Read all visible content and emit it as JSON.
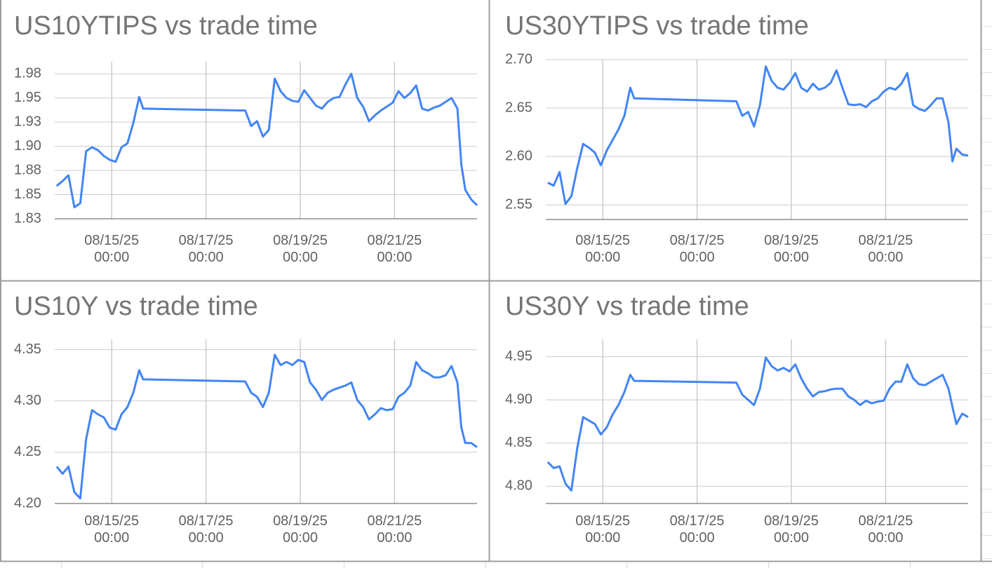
{
  "chart_data": [
    {
      "type": "line",
      "title": "US10YTIPS vs trade time",
      "color": "#4285f4",
      "grid": true,
      "xlim": [
        "08/13/25 19:00",
        "08/22/25 18:00"
      ],
      "xticks": [
        "08/15/25 00:00",
        "08/17/25 00:00",
        "08/19/25 00:00",
        "08/21/25 00:00"
      ],
      "ylim": [
        1.825,
        1.9875
      ],
      "yticks": [
        {
          "value": 1.825,
          "label": "1.83"
        },
        1.85,
        {
          "value": 1.875,
          "label": "1.88"
        },
        {
          "value": 1.9,
          "label": "1.90"
        },
        {
          "value": 1.925,
          "label": "1.93"
        },
        1.95,
        {
          "value": 1.975,
          "label": "1.98"
        }
      ],
      "x": [
        "08/13/25 20:00",
        "08/13/25 23:00",
        "08/14/25 02:00",
        "08/14/25 05:00",
        "08/14/25 08:00",
        "08/14/25 11:00",
        "08/14/25 14:00",
        "08/14/25 17:00",
        "08/14/25 20:00",
        "08/14/25 23:00",
        "08/15/25 02:00",
        "08/15/25 05:00",
        "08/15/25 08:00",
        "08/15/25 11:00",
        "08/15/25 14:00",
        "08/15/25 16:00",
        "08/17/25 20:00",
        "08/17/25 23:00",
        "08/18/25 02:00",
        "08/18/25 05:00",
        "08/18/25 08:00",
        "08/18/25 11:00",
        "08/18/25 14:00",
        "08/18/25 17:00",
        "08/18/25 20:00",
        "08/18/25 23:00",
        "08/19/25 02:00",
        "08/19/25 05:00",
        "08/19/25 08:00",
        "08/19/25 11:00",
        "08/19/25 14:00",
        "08/19/25 17:00",
        "08/19/25 20:00",
        "08/19/25 23:00",
        "08/20/25 02:00",
        "08/20/25 05:00",
        "08/20/25 08:00",
        "08/20/25 11:00",
        "08/20/25 14:00",
        "08/20/25 17:00",
        "08/20/25 20:00",
        "08/20/25 23:00",
        "08/21/25 02:00",
        "08/21/25 05:00",
        "08/21/25 08:00",
        "08/21/25 11:00",
        "08/21/25 14:00",
        "08/21/25 17:00",
        "08/21/25 20:00",
        "08/21/25 23:00",
        "08/22/25 02:00",
        "08/22/25 05:00",
        "08/22/25 08:00",
        "08/22/25 10:00",
        "08/22/25 12:00",
        "08/22/25 15:00",
        "08/22/25 18:00"
      ],
      "values": [
        1.859,
        1.864,
        1.87,
        1.837,
        1.841,
        1.895,
        1.899,
        1.896,
        1.89,
        1.886,
        1.884,
        1.899,
        1.903,
        1.924,
        1.951,
        1.939,
        1.937,
        1.921,
        1.926,
        1.91,
        1.917,
        1.97,
        1.957,
        1.95,
        1.947,
        1.946,
        1.958,
        1.95,
        1.942,
        1.939,
        1.946,
        1.95,
        1.951,
        1.964,
        1.975,
        1.95,
        1.941,
        1.926,
        1.932,
        1.937,
        1.941,
        1.945,
        1.957,
        1.95,
        1.955,
        1.963,
        1.939,
        1.937,
        1.94,
        1.942,
        1.946,
        1.95,
        1.939,
        1.881,
        1.855,
        1.845,
        1.839
      ]
    },
    {
      "type": "line",
      "title": "US30YTIPS vs trade time",
      "color": "#4285f4",
      "grid": true,
      "xlim": [
        "08/13/25 19:00",
        "08/22/25 18:00"
      ],
      "xticks": [
        "08/15/25 00:00",
        "08/17/25 00:00",
        "08/19/25 00:00",
        "08/21/25 00:00"
      ],
      "ylim": [
        2.535,
        2.7
      ],
      "yticks": [
        2.55,
        {
          "value": 2.6,
          "label": "2.60"
        },
        2.65,
        {
          "value": 2.7,
          "label": "2.70"
        }
      ],
      "x": [
        "08/13/25 20:00",
        "08/13/25 23:00",
        "08/14/25 02:00",
        "08/14/25 05:00",
        "08/14/25 08:00",
        "08/14/25 11:00",
        "08/14/25 14:00",
        "08/14/25 17:00",
        "08/14/25 20:00",
        "08/14/25 23:00",
        "08/15/25 02:00",
        "08/15/25 05:00",
        "08/15/25 08:00",
        "08/15/25 11:00",
        "08/15/25 14:00",
        "08/15/25 16:00",
        "08/17/25 20:00",
        "08/17/25 23:00",
        "08/18/25 02:00",
        "08/18/25 05:00",
        "08/18/25 08:00",
        "08/18/25 11:00",
        "08/18/25 14:00",
        "08/18/25 17:00",
        "08/18/25 20:00",
        "08/18/25 23:00",
        "08/19/25 02:00",
        "08/19/25 05:00",
        "08/19/25 08:00",
        "08/19/25 11:00",
        "08/19/25 14:00",
        "08/19/25 17:00",
        "08/19/25 20:00",
        "08/19/25 23:00",
        "08/20/25 02:00",
        "08/20/25 05:00",
        "08/20/25 08:00",
        "08/20/25 11:00",
        "08/20/25 14:00",
        "08/20/25 17:00",
        "08/20/25 20:00",
        "08/20/25 23:00",
        "08/21/25 02:00",
        "08/21/25 05:00",
        "08/21/25 08:00",
        "08/21/25 11:00",
        "08/21/25 14:00",
        "08/21/25 17:00",
        "08/21/25 20:00",
        "08/21/25 23:00",
        "08/22/25 02:00",
        "08/22/25 05:00",
        "08/22/25 08:00",
        "08/22/25 10:00",
        "08/22/25 12:00",
        "08/22/25 15:00",
        "08/22/25 18:00"
      ],
      "values": [
        2.573,
        2.57,
        2.584,
        2.551,
        2.559,
        2.588,
        2.613,
        2.609,
        2.604,
        2.591,
        2.606,
        2.617,
        2.628,
        2.642,
        2.671,
        2.66,
        2.657,
        2.642,
        2.646,
        2.631,
        2.653,
        2.693,
        2.678,
        2.671,
        2.669,
        2.676,
        2.686,
        2.671,
        2.667,
        2.675,
        2.669,
        2.671,
        2.676,
        2.689,
        2.671,
        2.654,
        2.653,
        2.654,
        2.651,
        2.657,
        2.66,
        2.667,
        2.671,
        2.669,
        2.675,
        2.686,
        2.653,
        2.649,
        2.647,
        2.653,
        2.66,
        2.66,
        2.635,
        2.595,
        2.608,
        2.602,
        2.601
      ]
    },
    {
      "type": "line",
      "title": "US10Y vs trade time",
      "color": "#4285f4",
      "grid": true,
      "xlim": [
        "08/13/25 19:00",
        "08/22/25 18:00"
      ],
      "xticks": [
        "08/15/25 00:00",
        "08/17/25 00:00",
        "08/19/25 00:00",
        "08/21/25 00:00"
      ],
      "ylim": [
        4.2,
        4.36
      ],
      "yticks": [
        {
          "value": 4.2,
          "label": "4.20"
        },
        4.25,
        {
          "value": 4.3,
          "label": "4.30"
        },
        4.35
      ],
      "x": [
        "08/13/25 20:00",
        "08/13/25 23:00",
        "08/14/25 02:00",
        "08/14/25 05:00",
        "08/14/25 08:00",
        "08/14/25 11:00",
        "08/14/25 14:00",
        "08/14/25 17:00",
        "08/14/25 20:00",
        "08/14/25 23:00",
        "08/15/25 02:00",
        "08/15/25 05:00",
        "08/15/25 08:00",
        "08/15/25 11:00",
        "08/15/25 14:00",
        "08/15/25 16:00",
        "08/17/25 20:00",
        "08/17/25 23:00",
        "08/18/25 02:00",
        "08/18/25 05:00",
        "08/18/25 08:00",
        "08/18/25 11:00",
        "08/18/25 14:00",
        "08/18/25 17:00",
        "08/18/25 20:00",
        "08/18/25 23:00",
        "08/19/25 02:00",
        "08/19/25 05:00",
        "08/19/25 08:00",
        "08/19/25 11:00",
        "08/19/25 14:00",
        "08/19/25 17:00",
        "08/19/25 20:00",
        "08/19/25 23:00",
        "08/20/25 02:00",
        "08/20/25 05:00",
        "08/20/25 08:00",
        "08/20/25 11:00",
        "08/20/25 14:00",
        "08/20/25 17:00",
        "08/20/25 20:00",
        "08/20/25 23:00",
        "08/21/25 02:00",
        "08/21/25 05:00",
        "08/21/25 08:00",
        "08/21/25 11:00",
        "08/21/25 14:00",
        "08/21/25 17:00",
        "08/21/25 20:00",
        "08/21/25 23:00",
        "08/22/25 02:00",
        "08/22/25 05:00",
        "08/22/25 08:00",
        "08/22/25 10:00",
        "08/22/25 12:00",
        "08/22/25 15:00",
        "08/22/25 18:00"
      ],
      "values": [
        4.236,
        4.229,
        4.236,
        4.211,
        4.205,
        4.263,
        4.291,
        4.287,
        4.284,
        4.274,
        4.272,
        4.287,
        4.294,
        4.308,
        4.33,
        4.321,
        4.319,
        4.308,
        4.304,
        4.294,
        4.308,
        4.345,
        4.335,
        4.338,
        4.335,
        4.34,
        4.338,
        4.318,
        4.311,
        4.301,
        4.308,
        4.311,
        4.313,
        4.315,
        4.318,
        4.301,
        4.294,
        4.282,
        4.287,
        4.293,
        4.291,
        4.292,
        4.304,
        4.308,
        4.315,
        4.338,
        4.33,
        4.327,
        4.323,
        4.323,
        4.325,
        4.334,
        4.318,
        4.274,
        4.259,
        4.259,
        4.255
      ]
    },
    {
      "type": "line",
      "title": "US30Y vs trade time",
      "color": "#4285f4",
      "grid": true,
      "xlim": [
        "08/13/25 19:00",
        "08/22/25 18:00"
      ],
      "xticks": [
        "08/15/25 00:00",
        "08/17/25 00:00",
        "08/19/25 00:00",
        "08/21/25 00:00"
      ],
      "ylim": [
        4.78,
        4.97
      ],
      "yticks": [
        {
          "value": 4.8,
          "label": "4.80"
        },
        4.85,
        {
          "value": 4.9,
          "label": "4.90"
        },
        4.95
      ],
      "x": [
        "08/13/25 20:00",
        "08/13/25 23:00",
        "08/14/25 02:00",
        "08/14/25 05:00",
        "08/14/25 08:00",
        "08/14/25 11:00",
        "08/14/25 14:00",
        "08/14/25 17:00",
        "08/14/25 20:00",
        "08/14/25 23:00",
        "08/15/25 02:00",
        "08/15/25 05:00",
        "08/15/25 08:00",
        "08/15/25 11:00",
        "08/15/25 14:00",
        "08/15/25 16:00",
        "08/17/25 20:00",
        "08/17/25 23:00",
        "08/18/25 02:00",
        "08/18/25 05:00",
        "08/18/25 08:00",
        "08/18/25 11:00",
        "08/18/25 14:00",
        "08/18/25 17:00",
        "08/18/25 20:00",
        "08/18/25 23:00",
        "08/19/25 02:00",
        "08/19/25 05:00",
        "08/19/25 08:00",
        "08/19/25 11:00",
        "08/19/25 14:00",
        "08/19/25 17:00",
        "08/19/25 20:00",
        "08/19/25 23:00",
        "08/20/25 02:00",
        "08/20/25 05:00",
        "08/20/25 08:00",
        "08/20/25 11:00",
        "08/20/25 14:00",
        "08/20/25 17:00",
        "08/20/25 20:00",
        "08/20/25 23:00",
        "08/21/25 02:00",
        "08/21/25 05:00",
        "08/21/25 08:00",
        "08/21/25 11:00",
        "08/21/25 14:00",
        "08/21/25 17:00",
        "08/21/25 20:00",
        "08/21/25 23:00",
        "08/22/25 02:00",
        "08/22/25 05:00",
        "08/22/25 08:00",
        "08/22/25 10:00",
        "08/22/25 12:00",
        "08/22/25 15:00",
        "08/22/25 18:00"
      ],
      "values": [
        4.828,
        4.821,
        4.823,
        4.803,
        4.795,
        4.844,
        4.88,
        4.876,
        4.872,
        4.86,
        4.868,
        4.883,
        4.894,
        4.909,
        4.929,
        4.922,
        4.92,
        4.906,
        4.9,
        4.894,
        4.913,
        4.949,
        4.939,
        4.934,
        4.937,
        4.933,
        4.941,
        4.925,
        4.913,
        4.904,
        4.909,
        4.91,
        4.912,
        4.913,
        4.913,
        4.904,
        4.9,
        4.894,
        4.899,
        4.896,
        4.898,
        4.899,
        4.913,
        4.921,
        4.921,
        4.941,
        4.925,
        4.918,
        4.917,
        4.921,
        4.925,
        4.929,
        4.913,
        4.892,
        4.872,
        4.884,
        4.88
      ]
    }
  ]
}
